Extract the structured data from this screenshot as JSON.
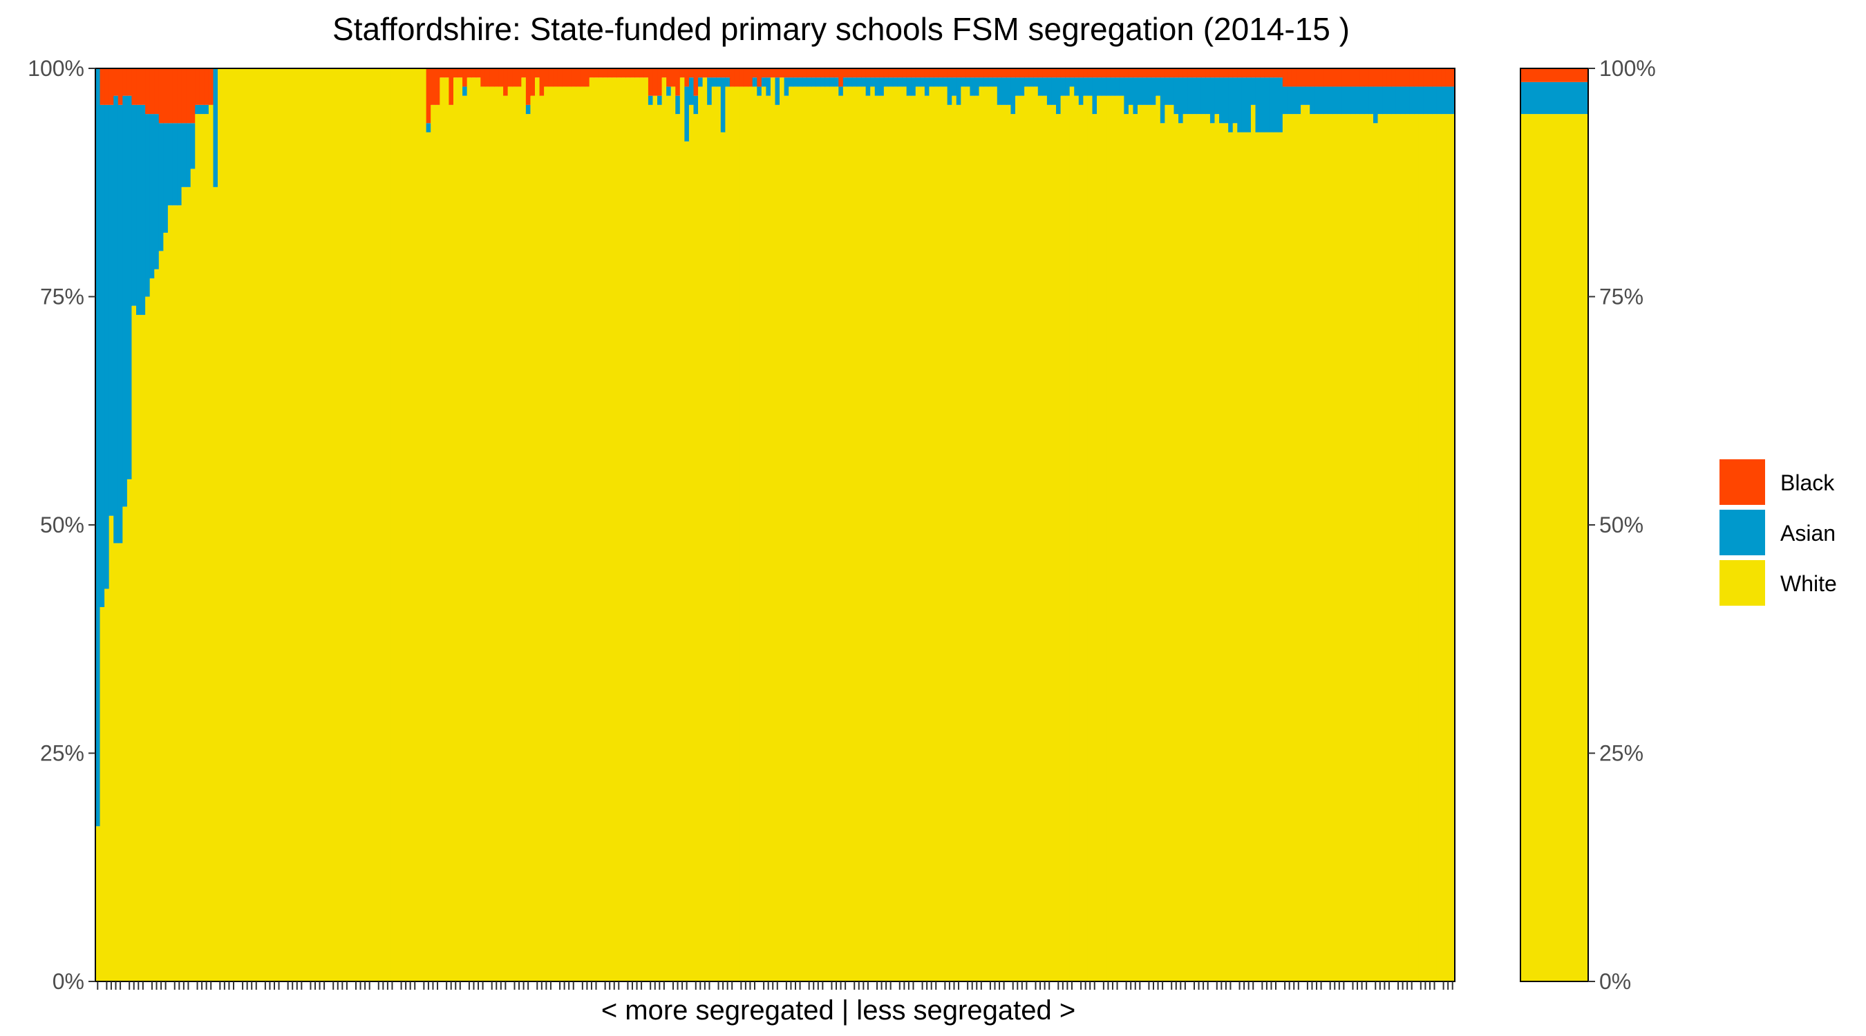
{
  "chart_data": {
    "type": "bar",
    "stacked": true,
    "percent": true,
    "title": "Staffordshire: State-funded primary schools FSM segregation (2014-15 )",
    "xlabel": "< more segregated | less segregated >",
    "ylabel": "",
    "ylim": [
      0,
      100
    ],
    "yticks": [
      "0%",
      "25%",
      "50%",
      "75%",
      "100%"
    ],
    "grid": false,
    "legend": {
      "position": "right"
    },
    "colors": {
      "Black": "#ff4500",
      "Asian": "#0099cc",
      "White": "#f5e200"
    },
    "series_order": [
      "Black",
      "Asian",
      "White"
    ],
    "schools": {
      "count": 300,
      "white_pct": [
        17,
        41,
        43,
        51,
        48,
        48,
        52,
        55,
        74,
        73,
        73,
        75,
        77,
        78,
        80,
        82,
        85,
        85,
        85,
        87,
        87,
        89,
        95,
        95,
        95,
        96,
        87,
        100,
        100,
        100,
        100,
        100,
        100,
        100,
        100,
        100,
        100,
        100,
        100,
        100,
        100,
        100,
        100,
        100,
        100,
        100,
        100,
        100,
        100,
        100,
        100,
        100,
        100,
        100,
        100,
        100,
        100,
        100,
        100,
        100,
        100,
        100,
        100,
        100,
        100,
        100,
        100,
        100,
        100,
        100,
        100,
        100,
        100,
        93,
        96,
        96,
        99,
        99,
        96,
        99,
        99,
        97,
        99,
        99,
        99,
        98,
        98,
        98,
        98,
        98,
        97,
        98,
        98,
        98,
        99,
        95,
        97,
        99,
        97,
        98,
        98,
        98,
        98,
        98,
        98,
        98,
        98,
        98,
        98,
        99,
        99,
        99,
        99,
        99,
        99,
        99,
        99,
        99,
        99,
        99,
        99,
        99,
        96,
        97,
        96,
        99,
        97,
        98,
        95,
        99,
        92,
        96,
        95,
        98,
        99,
        96,
        98,
        98,
        93,
        98,
        98,
        98,
        98,
        98,
        98,
        98,
        97,
        98,
        97,
        99,
        96,
        99,
        97,
        98,
        98,
        98,
        98,
        98,
        98,
        98,
        98,
        98,
        98,
        98,
        97,
        98,
        98,
        98,
        98,
        98,
        97,
        98,
        97,
        97,
        98,
        98,
        98,
        98,
        98,
        97,
        97,
        98,
        98,
        97,
        98,
        98,
        98,
        98,
        96,
        97,
        96,
        98,
        98,
        97,
        97,
        98,
        98,
        98,
        98,
        96,
        96,
        96,
        95,
        97,
        97,
        98,
        98,
        98,
        97,
        97,
        96,
        96,
        95,
        97,
        97,
        98,
        97,
        96,
        97,
        97,
        95,
        97,
        97,
        97,
        97,
        97,
        97,
        95,
        96,
        95,
        96,
        96,
        96,
        96,
        97,
        94,
        96,
        96,
        95,
        94,
        95,
        95,
        95,
        95,
        95,
        95,
        94,
        95,
        94,
        94,
        93,
        94,
        93,
        93,
        93,
        96,
        93,
        93,
        93,
        93,
        93,
        93,
        95,
        95,
        95,
        95,
        96,
        96,
        95,
        95,
        95,
        95,
        95,
        95,
        95,
        95,
        95,
        95,
        95,
        95,
        95,
        95,
        94,
        95,
        95,
        95,
        95,
        95,
        95,
        95,
        95,
        95,
        95,
        95,
        95,
        95,
        95,
        95,
        95,
        95,
        95,
        95,
        95
      ],
      "asian_pct": [
        83,
        55,
        53,
        45,
        49,
        48,
        45,
        42,
        22,
        23,
        23,
        20,
        18,
        17,
        14,
        12,
        9,
        9,
        9,
        7,
        7,
        5,
        1,
        1,
        1,
        0,
        13,
        0,
        0,
        0,
        0,
        0,
        0,
        0,
        0,
        0,
        0,
        0,
        0,
        0,
        0,
        0,
        0,
        0,
        0,
        0,
        0,
        0,
        0,
        0,
        0,
        0,
        0,
        0,
        0,
        0,
        0,
        0,
        0,
        0,
        0,
        0,
        0,
        0,
        0,
        0,
        0,
        0,
        0,
        0,
        0,
        0,
        0,
        1,
        0,
        0,
        0,
        0,
        0,
        0,
        0,
        1,
        0,
        0,
        0,
        0,
        0,
        0,
        0,
        0,
        0,
        0,
        0,
        0,
        0,
        1,
        0,
        0,
        0,
        0,
        0,
        0,
        0,
        0,
        0,
        0,
        0,
        0,
        0,
        0,
        0,
        0,
        0,
        0,
        0,
        0,
        0,
        0,
        0,
        0,
        0,
        0,
        1,
        0,
        1,
        0,
        1,
        0,
        2,
        0,
        6,
        3,
        2,
        1,
        0,
        3,
        1,
        1,
        6,
        1,
        0,
        0,
        0,
        0,
        0,
        1,
        1,
        1,
        2,
        0,
        3,
        0,
        2,
        1,
        1,
        1,
        1,
        1,
        1,
        1,
        1,
        1,
        1,
        1,
        1,
        1,
        1,
        1,
        1,
        1,
        2,
        1,
        2,
        2,
        1,
        1,
        1,
        1,
        1,
        2,
        2,
        1,
        1,
        2,
        1,
        1,
        1,
        1,
        3,
        2,
        3,
        1,
        1,
        2,
        2,
        1,
        1,
        1,
        1,
        3,
        3,
        3,
        4,
        2,
        2,
        1,
        1,
        1,
        2,
        2,
        3,
        3,
        4,
        2,
        2,
        1,
        2,
        3,
        2,
        2,
        4,
        2,
        2,
        2,
        2,
        2,
        2,
        4,
        3,
        4,
        3,
        3,
        3,
        3,
        2,
        5,
        3,
        3,
        4,
        5,
        4,
        4,
        4,
        4,
        4,
        4,
        5,
        4,
        5,
        5,
        6,
        5,
        6,
        6,
        6,
        3,
        6,
        6,
        6,
        6,
        6,
        6,
        3,
        3,
        3,
        3,
        2,
        2,
        3,
        3,
        3,
        3,
        3,
        3,
        3,
        3,
        3,
        3,
        3,
        3,
        3,
        3,
        4,
        3,
        3,
        3,
        3,
        3,
        3,
        3,
        3,
        3,
        3,
        3,
        3,
        3,
        3,
        3,
        3,
        3,
        3,
        3,
        3
      ]
    },
    "overall": {
      "white_pct": 95,
      "asian_pct": 3.5,
      "black_pct": 1.5
    }
  },
  "legend": {
    "black": "Black",
    "asian": "Asian",
    "white": "White"
  },
  "axis": {
    "y_left_ticks": [
      "0%",
      "25%",
      "50%",
      "75%",
      "100%"
    ],
    "y_right_ticks": [
      "0%",
      "25%",
      "50%",
      "75%",
      "100%"
    ]
  }
}
